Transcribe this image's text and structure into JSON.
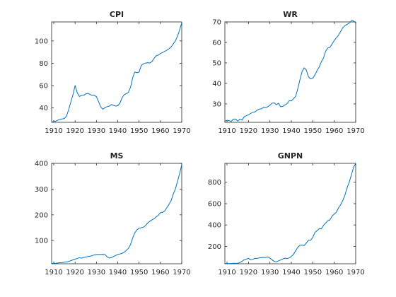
{
  "chart_data": [
    {
      "type": "line",
      "title": "CPI",
      "xlabel": "",
      "ylabel": "",
      "xlim": [
        1909,
        1970
      ],
      "ylim": [
        27,
        117
      ],
      "xticks": [
        1910,
        1920,
        1930,
        1940,
        1950,
        1960,
        1970
      ],
      "yticks": [
        40,
        60,
        80,
        100
      ],
      "color": "#0072bd",
      "x": [
        1909,
        1910,
        1911,
        1912,
        1913,
        1914,
        1915,
        1916,
        1917,
        1918,
        1919,
        1920,
        1921,
        1922,
        1923,
        1924,
        1925,
        1926,
        1927,
        1928,
        1929,
        1930,
        1931,
        1932,
        1933,
        1934,
        1935,
        1936,
        1937,
        1938,
        1939,
        1940,
        1941,
        1942,
        1943,
        1944,
        1945,
        1946,
        1947,
        1948,
        1949,
        1950,
        1951,
        1952,
        1953,
        1954,
        1955,
        1956,
        1957,
        1958,
        1959,
        1960,
        1961,
        1962,
        1963,
        1964,
        1965,
        1966,
        1967,
        1968,
        1969,
        1970
      ],
      "y": [
        27.0,
        28.0,
        28.0,
        29.0,
        29.7,
        30.1,
        30.4,
        32.7,
        38.4,
        45.1,
        51.8,
        60.0,
        53.6,
        50.2,
        51.1,
        51.2,
        52.5,
        53.0,
        52.0,
        51.3,
        51.3,
        50.0,
        45.6,
        40.9,
        38.8,
        40.1,
        41.1,
        41.5,
        43.0,
        42.2,
        41.6,
        41.9,
        44.1,
        48.8,
        51.8,
        52.7,
        53.9,
        58.5,
        66.9,
        72.1,
        71.4,
        72.1,
        77.8,
        79.5,
        80.1,
        80.5,
        80.2,
        81.4,
        84.3,
        86.6,
        87.3,
        88.7,
        89.6,
        90.6,
        91.7,
        92.9,
        94.5,
        97.2,
        100.0,
        104.2,
        109.8,
        116.3
      ]
    },
    {
      "type": "line",
      "title": "WR",
      "xlabel": "",
      "ylabel": "",
      "xlim": [
        1909,
        1970
      ],
      "ylim": [
        21,
        70
      ],
      "xticks": [
        1910,
        1920,
        1930,
        1940,
        1950,
        1960,
        1970
      ],
      "yticks": [
        30,
        40,
        50,
        60,
        70
      ],
      "color": "#0072bd",
      "x": [
        1909,
        1910,
        1911,
        1912,
        1913,
        1914,
        1915,
        1916,
        1917,
        1918,
        1919,
        1920,
        1921,
        1922,
        1923,
        1924,
        1925,
        1926,
        1927,
        1928,
        1929,
        1930,
        1931,
        1932,
        1933,
        1934,
        1935,
        1936,
        1937,
        1938,
        1939,
        1940,
        1941,
        1942,
        1943,
        1944,
        1945,
        1946,
        1947,
        1948,
        1949,
        1950,
        1951,
        1952,
        1953,
        1954,
        1955,
        1956,
        1957,
        1958,
        1959,
        1960,
        1961,
        1962,
        1963,
        1964,
        1965,
        1966,
        1967,
        1968,
        1969,
        1970
      ],
      "y": [
        21.5,
        22.0,
        21.8,
        21.5,
        22.6,
        22.6,
        21.6,
        22.6,
        22.1,
        23.7,
        24.2,
        24.7,
        25.3,
        25.9,
        26.1,
        26.9,
        27.5,
        27.6,
        28.3,
        28.2,
        28.6,
        29.4,
        30.3,
        30.5,
        29.6,
        30.3,
        28.6,
        28.8,
        29.5,
        30.1,
        31.5,
        31.5,
        32.5,
        33.7,
        37.4,
        41.8,
        45.8,
        47.6,
        46.5,
        43.2,
        42.2,
        42.5,
        44.2,
        46.3,
        48.0,
        50.6,
        52.4,
        55.7,
        57.3,
        57.6,
        59.2,
        61.0,
        62.3,
        63.5,
        65.4,
        67.2,
        68.2,
        68.8,
        69.4,
        70.6,
        70.5,
        69.6
      ]
    },
    {
      "type": "line",
      "title": "MS",
      "xlabel": "",
      "ylabel": "",
      "xlim": [
        1909,
        1970
      ],
      "ylim": [
        10,
        400
      ],
      "xticks": [
        1910,
        1920,
        1930,
        1940,
        1950,
        1960,
        1970
      ],
      "yticks": [
        100,
        200,
        300,
        400
      ],
      "color": "#0072bd",
      "x": [
        1909,
        1910,
        1911,
        1912,
        1913,
        1914,
        1915,
        1916,
        1917,
        1918,
        1919,
        1920,
        1921,
        1922,
        1923,
        1924,
        1925,
        1926,
        1927,
        1928,
        1929,
        1930,
        1931,
        1932,
        1933,
        1934,
        1935,
        1936,
        1937,
        1938,
        1939,
        1940,
        1941,
        1942,
        1943,
        1944,
        1945,
        1946,
        1947,
        1948,
        1949,
        1950,
        1951,
        1952,
        1953,
        1954,
        1955,
        1956,
        1957,
        1958,
        1959,
        1960,
        1961,
        1962,
        1963,
        1964,
        1965,
        1966,
        1967,
        1968,
        1969,
        1970
      ],
      "y": [
        11,
        12,
        12,
        13,
        14,
        15,
        16,
        17,
        19,
        22,
        25,
        28,
        30,
        34,
        32,
        34,
        36,
        38,
        39,
        42,
        44,
        46,
        46,
        46,
        47,
        46,
        37,
        32,
        34,
        38,
        42,
        46,
        48,
        50,
        55,
        62,
        70,
        85,
        110,
        130,
        142,
        148,
        150,
        152,
        158,
        168,
        175,
        180,
        185,
        192,
        198,
        208,
        210,
        215,
        228,
        240,
        255,
        280,
        300,
        330,
        360,
        395
      ]
    },
    {
      "type": "line",
      "title": "GNPN",
      "xlabel": "",
      "ylabel": "",
      "xlim": [
        1909,
        1970
      ],
      "ylim": [
        37,
        977
      ],
      "xticks": [
        1910,
        1920,
        1930,
        1940,
        1950,
        1960,
        1970
      ],
      "yticks": [
        200,
        400,
        600,
        800
      ],
      "color": "#0072bd",
      "x": [
        1909,
        1910,
        1911,
        1912,
        1913,
        1914,
        1915,
        1916,
        1917,
        1918,
        1919,
        1920,
        1921,
        1922,
        1923,
        1924,
        1925,
        1926,
        1927,
        1928,
        1929,
        1930,
        1931,
        1932,
        1933,
        1934,
        1935,
        1936,
        1937,
        1938,
        1939,
        1940,
        1941,
        1942,
        1943,
        1944,
        1945,
        1946,
        1947,
        1948,
        1949,
        1950,
        1951,
        1952,
        1953,
        1954,
        1955,
        1956,
        1957,
        1958,
        1959,
        1960,
        1961,
        1962,
        1963,
        1964,
        1965,
        1966,
        1967,
        1968,
        1969,
        1970
      ],
      "y": [
        37,
        40,
        38,
        40,
        42,
        41,
        42,
        48,
        60,
        75,
        80,
        88,
        72,
        78,
        88,
        87,
        92,
        95,
        96,
        96,
        102,
        90,
        75,
        58,
        55,
        65,
        72,
        82,
        90,
        85,
        92,
        105,
        125,
        158,
        190,
        210,
        212,
        208,
        232,
        258,
        256,
        285,
        330,
        348,
        365,
        364,
        398,
        418,
        440,
        448,
        483,
        503,
        520,
        560,
        590,
        630,
        680,
        750,
        800,
        870,
        940,
        977
      ]
    }
  ]
}
